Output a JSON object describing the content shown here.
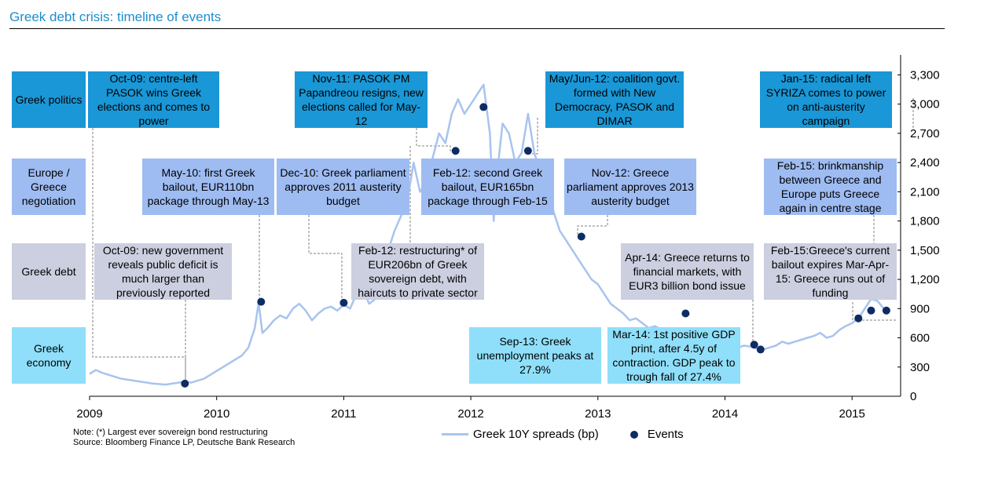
{
  "title": "Greek debt crisis: timeline of events",
  "row_labels": [
    {
      "id": "politics",
      "text": "Greek politics"
    },
    {
      "id": "europe",
      "text": "Europe / Greece negotiation"
    },
    {
      "id": "debt",
      "text": "Greek debt"
    },
    {
      "id": "economy",
      "text": "Greek economy"
    }
  ],
  "annotations": [
    {
      "id": "oct09-politics",
      "category": "politics",
      "text": "Oct-09: centre-left PASOK wins Greek elections and comes to power"
    },
    {
      "id": "nov11",
      "category": "politics",
      "text": "Nov-11: PASOK PM Papandreou resigns, new elections called for May-12"
    },
    {
      "id": "mayjun12",
      "category": "politics",
      "text": "May/Jun-12: coalition govt. formed with New Democracy, PASOK and DIMAR"
    },
    {
      "id": "jan15",
      "category": "politics",
      "text": "Jan-15: radical left SYRIZA comes to power on anti-austerity campaign"
    },
    {
      "id": "may10",
      "category": "europe",
      "text": "May-10: first Greek bailout, EUR110bn package through May-13"
    },
    {
      "id": "dec10",
      "category": "europe",
      "text": "Dec-10: Greek parliament approves 2011 austerity budget"
    },
    {
      "id": "feb12-bailout",
      "category": "europe",
      "text": "Feb-12: second Greek bailout, EUR165bn package through Feb-15"
    },
    {
      "id": "nov12",
      "category": "europe",
      "text": "Nov-12: Greece parliament approves 2013 austerity budget"
    },
    {
      "id": "feb15-brink",
      "category": "europe",
      "text": "Feb-15: brinkmanship between Greece and Europe puts Greece again in centre stage"
    },
    {
      "id": "oct09-debt",
      "category": "debt",
      "text": "Oct-09: new government reveals public deficit is much larger than previously reported"
    },
    {
      "id": "feb12-restructure",
      "category": "debt",
      "text": "Feb-12: restructuring* of EUR206bn of Greek sovereign debt, with haircuts to private sector"
    },
    {
      "id": "apr14",
      "category": "debt",
      "text": "Apr-14: Greece returns to financial markets, with EUR3 billion bond issue"
    },
    {
      "id": "feb15-bailout",
      "category": "debt",
      "text": "Feb-15:Greece's current bailout expires Mar-Apr-15: Greece runs out of funding"
    },
    {
      "id": "sep13",
      "category": "economy",
      "text": "Sep-13: Greek unemployment peaks at 27.9%"
    },
    {
      "id": "mar14",
      "category": "economy",
      "text": "Mar-14: 1st positive GDP print, after 4.5y of contraction. GDP peak to trough fall of 27.4%"
    }
  ],
  "legend": {
    "series": "Greek 10Y spreads (bp)",
    "events": "Events"
  },
  "footnotes": {
    "note": "Note: (*) Largest ever sovereign bond restructuring",
    "source": "Source: Bloomberg Finance LP, Deutsche Bank Research"
  },
  "colors": {
    "title": "#1a8fd0",
    "politics": "#1a97d6",
    "europe": "#9ebcf2",
    "debt": "#cccfe0",
    "economy": "#8fdffa",
    "line": "#a8c4ee",
    "events": "#0e2c64",
    "connector": "#808080"
  },
  "chart_data": {
    "type": "line",
    "x_tick_labels": [
      "2009",
      "2010",
      "2011",
      "2012",
      "2013",
      "2014",
      "2015"
    ],
    "y_tick_labels": [
      "0",
      "300",
      "600",
      "900",
      "1,200",
      "1,500",
      "1,800",
      "2,100",
      "2,400",
      "2,700",
      "3,000",
      "3,300"
    ],
    "xlim": [
      2009.0,
      2015.6
    ],
    "ylim": [
      0,
      3500
    ],
    "y_axis_side": "right",
    "grid": false,
    "legend_position": "bottom-center",
    "series": [
      {
        "name": "Greek 10Y spreads (bp)",
        "x": [
          2009.0,
          2009.05,
          2009.1,
          2009.15,
          2009.2,
          2009.25,
          2009.3,
          2009.35,
          2009.4,
          2009.45,
          2009.5,
          2009.55,
          2009.6,
          2009.65,
          2009.7,
          2009.75,
          2009.8,
          2009.85,
          2009.9,
          2009.95,
          2010.0,
          2010.05,
          2010.1,
          2010.15,
          2010.2,
          2010.25,
          2010.3,
          2010.33,
          2010.36,
          2010.4,
          2010.45,
          2010.5,
          2010.55,
          2010.6,
          2010.65,
          2010.7,
          2010.75,
          2010.8,
          2010.85,
          2010.9,
          2010.95,
          2011.0,
          2011.05,
          2011.1,
          2011.15,
          2011.2,
          2011.25,
          2011.3,
          2011.35,
          2011.4,
          2011.45,
          2011.5,
          2011.55,
          2011.6,
          2011.65,
          2011.7,
          2011.75,
          2011.8,
          2011.85,
          2011.9,
          2011.95,
          2012.0,
          2012.05,
          2012.1,
          2012.15,
          2012.18,
          2012.2,
          2012.25,
          2012.3,
          2012.35,
          2012.4,
          2012.45,
          2012.5,
          2012.55,
          2012.6,
          2012.65,
          2012.7,
          2012.75,
          2012.8,
          2012.85,
          2012.9,
          2012.95,
          2013.0,
          2013.05,
          2013.1,
          2013.15,
          2013.2,
          2013.25,
          2013.3,
          2013.35,
          2013.4,
          2013.45,
          2013.5,
          2013.55,
          2013.6,
          2013.65,
          2013.7,
          2013.75,
          2013.8,
          2013.85,
          2013.9,
          2013.95,
          2014.0,
          2014.05,
          2014.1,
          2014.15,
          2014.2,
          2014.25,
          2014.3,
          2014.35,
          2014.4,
          2014.45,
          2014.5,
          2014.55,
          2014.6,
          2014.65,
          2014.7,
          2014.75,
          2014.8,
          2014.85,
          2014.9,
          2014.95,
          2015.0,
          2015.05,
          2015.1,
          2015.15,
          2015.2,
          2015.25,
          2015.3
        ],
        "y": [
          230,
          270,
          240,
          220,
          200,
          180,
          170,
          160,
          150,
          140,
          130,
          125,
          120,
          130,
          140,
          150,
          140,
          160,
          180,
          220,
          260,
          300,
          340,
          380,
          420,
          500,
          700,
          960,
          650,
          700,
          780,
          830,
          800,
          900,
          950,
          880,
          780,
          850,
          900,
          920,
          880,
          940,
          900,
          1050,
          1100,
          950,
          1000,
          1200,
          1500,
          1700,
          1850,
          2000,
          2400,
          2100,
          2200,
          2450,
          2700,
          2600,
          2900,
          3050,
          2900,
          3000,
          3100,
          3200,
          2700,
          1800,
          2200,
          2800,
          2700,
          2400,
          2500,
          2900,
          2500,
          2300,
          2100,
          1900,
          1700,
          1600,
          1500,
          1400,
          1300,
          1200,
          1150,
          1050,
          950,
          900,
          850,
          780,
          800,
          750,
          700,
          720,
          680,
          700,
          650,
          600,
          620,
          580,
          560,
          540,
          520,
          500,
          480,
          470,
          500,
          520,
          510,
          490,
          480,
          500,
          520,
          560,
          540,
          560,
          580,
          600,
          620,
          650,
          600,
          620,
          680,
          720,
          750,
          800,
          900,
          1000,
          980,
          900,
          880
        ]
      }
    ],
    "events": {
      "name": "Events",
      "x": [
        2009.75,
        2010.35,
        2011.0,
        2011.88,
        2012.1,
        2012.45,
        2012.87,
        2013.69,
        2014.23,
        2014.28,
        2015.05,
        2015.15,
        2015.27
      ],
      "y": [
        130,
        970,
        960,
        2520,
        2970,
        2520,
        1640,
        850,
        530,
        480,
        800,
        880,
        880
      ]
    }
  }
}
